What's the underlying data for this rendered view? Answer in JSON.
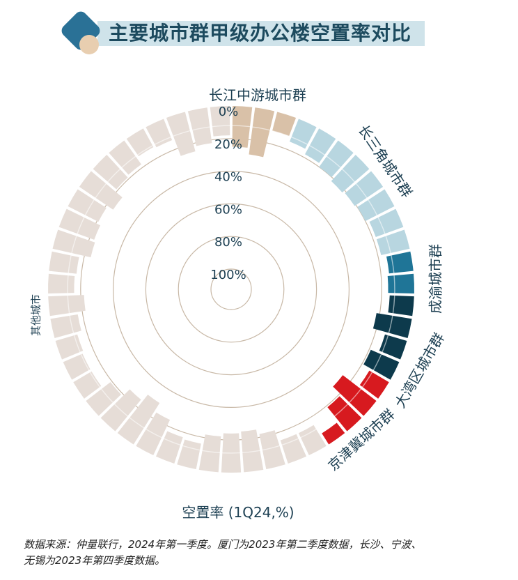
{
  "header": {
    "title": "主要城市群甲级办公楼空置率对比"
  },
  "colors": {
    "长江中游城市群": "#d9c1a8",
    "长三角城市群": "#b8d6e0",
    "成渝城市群": "#1f7597",
    "大湾区城市群": "#0d3a4c",
    "京津冀城市群": "#d71a1f",
    "其他城市": "#e6ddd7",
    "background_band": "#e6ddd7",
    "ring_line": "#c8b8a6"
  },
  "chart_data": {
    "type": "radial-bar",
    "title": "主要城市群甲级办公楼空置率对比",
    "xlabel": "空置率 (1Q24,%)",
    "axis_ticks": [
      "0%",
      "20%",
      "40%",
      "60%",
      "80%",
      "100%"
    ],
    "axis_values": [
      0,
      20,
      40,
      60,
      80,
      100
    ],
    "groups": [
      {
        "name": "长江中游城市群",
        "values": [
          25,
          29,
          12
        ]
      },
      {
        "name": "长三角城市群",
        "values": [
          15,
          18,
          20,
          22,
          21,
          20,
          18,
          18
        ]
      },
      {
        "name": "成渝城市群",
        "values": [
          15,
          16
        ]
      },
      {
        "name": "大湾区城市群",
        "values": [
          15,
          22,
          14,
          19
        ]
      },
      {
        "name": "京津冀城市群",
        "values": [
          14,
          26,
          19,
          8
        ]
      },
      {
        "name": "其他城市",
        "values": [
          15,
          15,
          22,
          25,
          24,
          22,
          16,
          17,
          24,
          30,
          25,
          19,
          13,
          13,
          14,
          17,
          22,
          16,
          17,
          24,
          23,
          21,
          25,
          19,
          18,
          13,
          14,
          25,
          22,
          18
        ]
      }
    ]
  },
  "footnote": {
    "line1": "数据来源：仲量联行，2024年第一季度。厦门为2023年第二季度数据，长沙、宁波、",
    "line2": "无锡为2023年第四季度数据。"
  }
}
